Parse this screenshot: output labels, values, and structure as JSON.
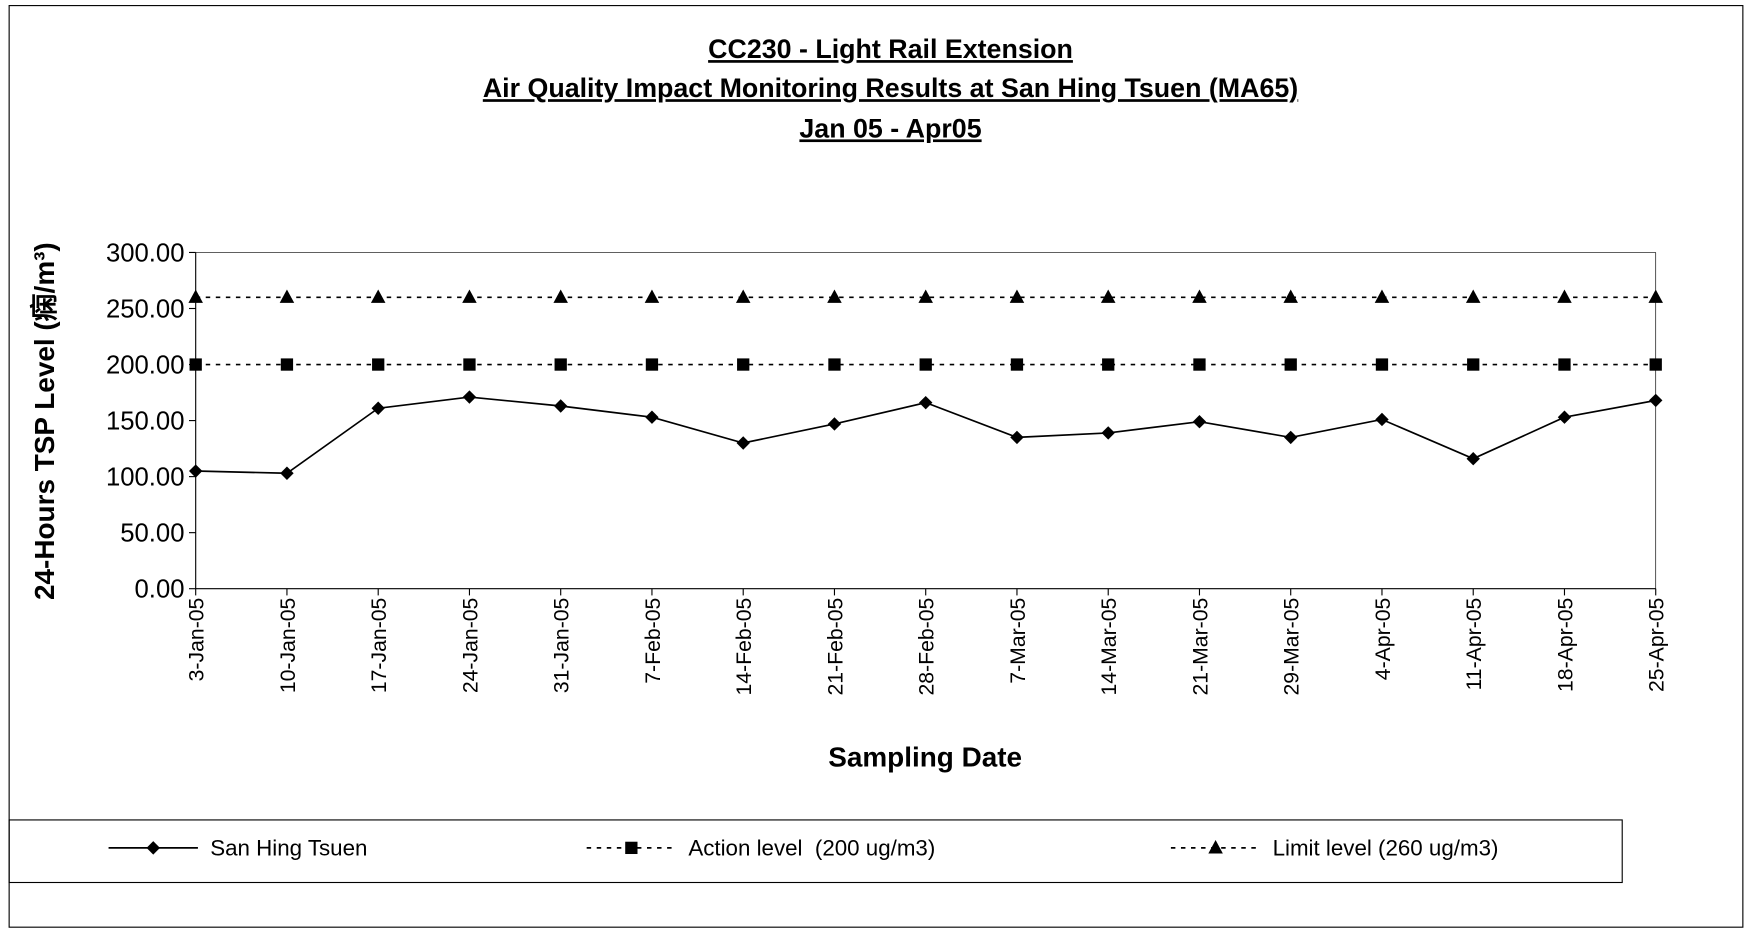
{
  "chart_data": {
    "type": "line",
    "title": [
      "CC230 - Light Rail Extension",
      "Air Quality Impact Monitoring Results at San Hing Tsuen (MA65)",
      "Jan 05 - Apr05"
    ],
    "x_label": "Sampling Date",
    "y_label": "24-Hours TSP Level (痫/m³)",
    "categories": [
      "3-Jan-05",
      "10-Jan-05",
      "17-Jan-05",
      "24-Jan-05",
      "31-Jan-05",
      "7-Feb-05",
      "14-Feb-05",
      "21-Feb-05",
      "28-Feb-05",
      "7-Mar-05",
      "14-Mar-05",
      "21-Mar-05",
      "29-Mar-05",
      "4-Apr-05",
      "11-Apr-05",
      "18-Apr-05",
      "25-Apr-05"
    ],
    "series": [
      {
        "name": "San Hing Tsuen",
        "color": "#000000",
        "marker": "diamond",
        "line_style": "solid",
        "values": [
          105,
          103,
          161,
          171,
          163,
          153,
          130,
          147,
          166,
          135,
          139,
          149,
          135,
          151,
          116,
          153,
          168
        ]
      },
      {
        "name": "Action level  (200 ug/m3)",
        "color": "#000000",
        "marker": "square",
        "line_style": "dotted",
        "values": [
          200,
          200,
          200,
          200,
          200,
          200,
          200,
          200,
          200,
          200,
          200,
          200,
          200,
          200,
          200,
          200,
          200
        ]
      },
      {
        "name": "Limit level (260 ug/m3)",
        "color": "#000000",
        "marker": "triangle",
        "line_style": "dotted",
        "values": [
          260,
          260,
          260,
          260,
          260,
          260,
          260,
          260,
          260,
          260,
          260,
          260,
          260,
          260,
          260,
          260,
          260
        ]
      }
    ],
    "ylim": [
      0,
      300
    ],
    "yticks": [
      {
        "value": 0,
        "label": "0.00"
      },
      {
        "value": 50,
        "label": "50.00"
      },
      {
        "value": 100,
        "label": "100.00"
      },
      {
        "value": 150,
        "label": "150.00"
      },
      {
        "value": 200,
        "label": "200.00"
      },
      {
        "value": 250,
        "label": "250.00"
      },
      {
        "value": 300,
        "label": "300.00"
      }
    ],
    "legend": "bottom",
    "grid": false
  }
}
